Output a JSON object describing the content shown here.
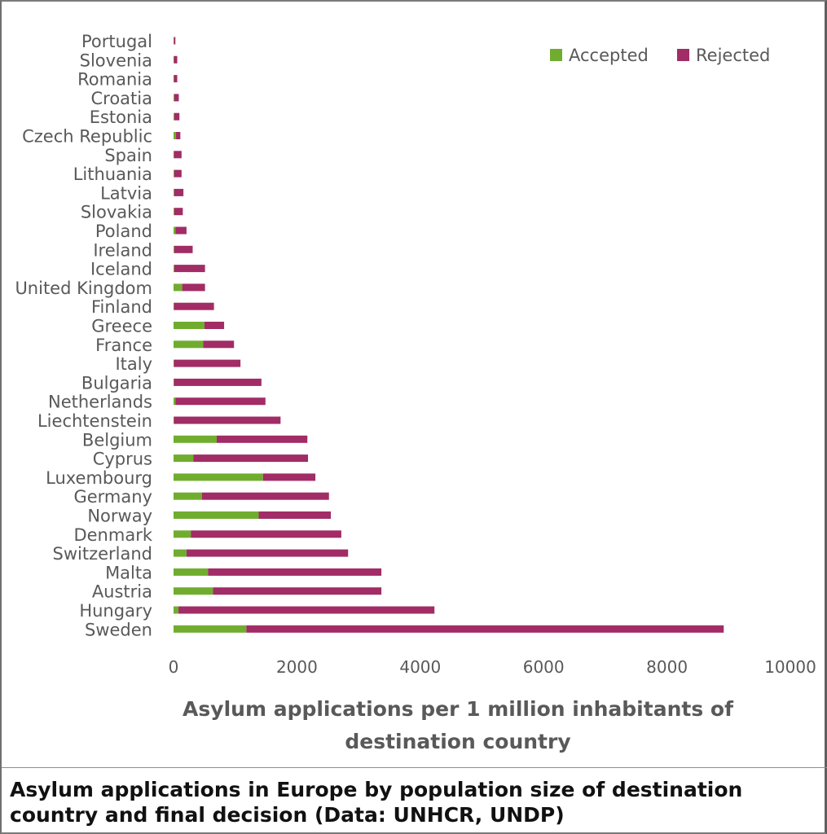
{
  "chart_data": {
    "type": "bar",
    "orientation": "horizontal",
    "stacked": true,
    "categories": [
      "Portugal",
      "Slovenia",
      "Romania",
      "Croatia",
      "Estonia",
      "Czech Republic",
      "Spain",
      "Lithuania",
      "Latvia",
      "Slovakia",
      "Poland",
      "Ireland",
      "Iceland",
      "United Kingdom",
      "Finland",
      "Greece",
      "France",
      "Italy",
      "Bulgaria",
      "Netherlands",
      "Liechtenstein",
      "Belgium",
      "Cyprus",
      "Luxembourg",
      "Germany",
      "Norway",
      "Denmark",
      "Switzerland",
      "Malta",
      "Austria",
      "Hungary",
      "Sweden"
    ],
    "series": [
      {
        "name": "Accepted",
        "color": "#70ad2f",
        "values": [
          5,
          5,
          5,
          10,
          10,
          40,
          5,
          10,
          10,
          10,
          30,
          10,
          10,
          140,
          5,
          500,
          480,
          5,
          5,
          30,
          5,
          700,
          320,
          1450,
          460,
          1380,
          280,
          210,
          560,
          640,
          80,
          1180
        ]
      },
      {
        "name": "Rejected",
        "color": "#a12c66",
        "values": [
          25,
          55,
          55,
          75,
          85,
          70,
          125,
          120,
          150,
          140,
          180,
          300,
          500,
          370,
          650,
          320,
          500,
          1080,
          1420,
          1460,
          1730,
          1470,
          1860,
          850,
          2060,
          1170,
          2440,
          2620,
          2810,
          2730,
          4150,
          7740
        ]
      }
    ],
    "xlabel": "Asylum applications per 1 million inhabitants of destination country",
    "ylabel": "",
    "xlim": [
      0,
      10000
    ],
    "xticks": [
      0,
      2000,
      4000,
      6000,
      8000,
      10000
    ],
    "grid": false,
    "legend": "top-right"
  },
  "caption": "Asylum applications in Europe by population size of destination country and final decision (Data: UNHCR, UNDP)"
}
